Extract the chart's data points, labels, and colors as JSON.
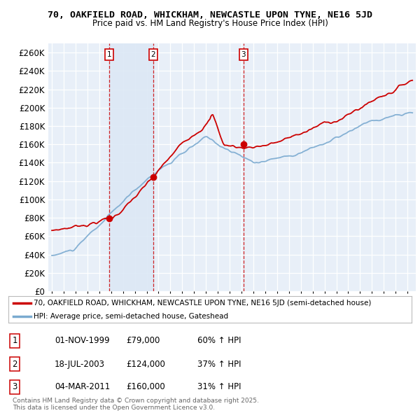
{
  "title1": "70, OAKFIELD ROAD, WHICKHAM, NEWCASTLE UPON TYNE, NE16 5JD",
  "title2": "Price paid vs. HM Land Registry's House Price Index (HPI)",
  "ylim": [
    0,
    270000
  ],
  "yticks": [
    0,
    20000,
    40000,
    60000,
    80000,
    100000,
    120000,
    140000,
    160000,
    180000,
    200000,
    220000,
    240000,
    260000
  ],
  "ytick_labels": [
    "£0",
    "£20K",
    "£40K",
    "£60K",
    "£80K",
    "£100K",
    "£120K",
    "£140K",
    "£160K",
    "£180K",
    "£200K",
    "£220K",
    "£240K",
    "£260K"
  ],
  "sale_times": [
    1999.833,
    2003.542,
    2011.167
  ],
  "sale_prices": [
    79000,
    124000,
    160000
  ],
  "sale_labels": [
    "1",
    "2",
    "3"
  ],
  "sale_date_strs": [
    "01-NOV-1999",
    "18-JUL-2003",
    "04-MAR-2011"
  ],
  "sale_price_strs": [
    "£79,000",
    "£124,000",
    "£160,000"
  ],
  "sale_hpi_strs": [
    "60% ↑ HPI",
    "37% ↑ HPI",
    "31% ↑ HPI"
  ],
  "legend_red": "70, OAKFIELD ROAD, WHICKHAM, NEWCASTLE UPON TYNE, NE16 5JD (semi-detached house)",
  "legend_blue": "HPI: Average price, semi-detached house, Gateshead",
  "footnote": "Contains HM Land Registry data © Crown copyright and database right 2025.\nThis data is licensed under the Open Government Licence v3.0.",
  "red_color": "#cc0000",
  "blue_color": "#7aaad0",
  "shade_color": "#dce8f5",
  "vline_color": "#cc0000",
  "bg_color": "#ffffff",
  "plot_bg": "#f0f4f8",
  "grid_color": "#cccccc",
  "xlim_left": 1994.7,
  "xlim_right": 2025.7
}
